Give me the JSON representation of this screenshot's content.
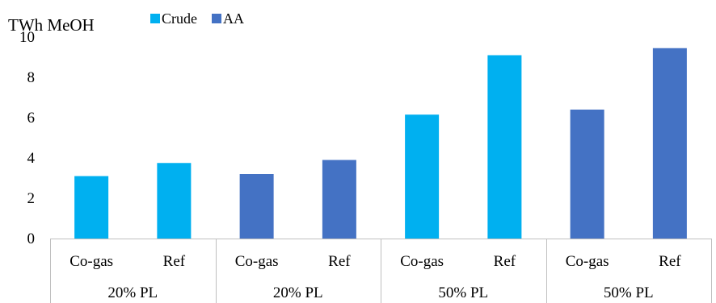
{
  "chart_data": {
    "type": "bar",
    "ylabel": "TWh MeOH",
    "ylim": [
      0,
      10
    ],
    "yticks": [
      0,
      2,
      4,
      6,
      8,
      10
    ],
    "grid": false,
    "legend_position": "top",
    "legend": [
      {
        "name": "Crude",
        "color": "#00B0F0"
      },
      {
        "name": "AA",
        "color": "#4472C4"
      }
    ],
    "groups": [
      {
        "label": "20% PL",
        "bars": [
          {
            "label": "Co-gas",
            "series": "Crude",
            "value": 3.1
          },
          {
            "label": "Ref",
            "series": "Crude",
            "value": 3.75
          }
        ]
      },
      {
        "label": "20% PL",
        "bars": [
          {
            "label": "Co-gas",
            "series": "AA",
            "value": 3.2
          },
          {
            "label": "Ref",
            "series": "AA",
            "value": 3.9
          }
        ]
      },
      {
        "label": "50% PL",
        "bars": [
          {
            "label": "Co-gas",
            "series": "Crude",
            "value": 6.15
          },
          {
            "label": "Ref",
            "series": "Crude",
            "value": 9.1
          }
        ]
      },
      {
        "label": "50% PL",
        "bars": [
          {
            "label": "Co-gas",
            "series": "AA",
            "value": 6.4
          },
          {
            "label": "Ref",
            "series": "AA",
            "value": 9.45
          }
        ]
      }
    ]
  }
}
